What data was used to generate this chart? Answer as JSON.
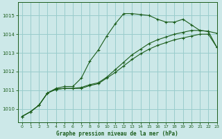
{
  "title": "Graphe pression niveau de la mer (hPa)",
  "bg_color": "#cce8e8",
  "grid_color": "#99cccc",
  "line_color": "#1a5c1a",
  "xlim": [
    -0.5,
    23
  ],
  "ylim": [
    1009.3,
    1015.7
  ],
  "xticks": [
    0,
    1,
    2,
    3,
    4,
    5,
    6,
    7,
    8,
    9,
    10,
    11,
    12,
    13,
    14,
    15,
    16,
    17,
    18,
    19,
    20,
    21,
    22,
    23
  ],
  "yticks": [
    1010,
    1011,
    1012,
    1013,
    1014,
    1015
  ],
  "series": [
    {
      "x": [
        0,
        1,
        2,
        3,
        4,
        5,
        6,
        7,
        8,
        9,
        10,
        11,
        12,
        13,
        14,
        15,
        16,
        17,
        18,
        19,
        20,
        21,
        22,
        23
      ],
      "y": [
        1009.6,
        1009.85,
        1010.2,
        1010.85,
        1011.1,
        1011.2,
        1011.2,
        1011.65,
        1012.55,
        1013.15,
        1013.9,
        1014.55,
        1015.1,
        1015.1,
        1015.05,
        1015.0,
        1014.8,
        1014.65,
        1014.65,
        1014.8,
        1014.5,
        1014.2,
        1014.15,
        1014.05
      ]
    },
    {
      "x": [
        0,
        1,
        2,
        3,
        4,
        5,
        6,
        7,
        8,
        9,
        10,
        11,
        12,
        13,
        14,
        15,
        16,
        17,
        18,
        19,
        20,
        21,
        22,
        23
      ],
      "y": [
        1009.6,
        1009.85,
        1010.2,
        1010.85,
        1011.05,
        1011.1,
        1011.1,
        1011.15,
        1011.3,
        1011.4,
        1011.7,
        1012.1,
        1012.5,
        1012.9,
        1013.2,
        1013.5,
        1013.7,
        1013.85,
        1014.0,
        1014.1,
        1014.2,
        1014.2,
        1014.15,
        1013.3
      ]
    },
    {
      "x": [
        0,
        1,
        2,
        3,
        4,
        5,
        6,
        7,
        8,
        9,
        10,
        11,
        12,
        13,
        14,
        15,
        16,
        17,
        18,
        19,
        20,
        21,
        22,
        23
      ],
      "y": [
        1009.6,
        1009.85,
        1010.2,
        1010.85,
        1011.05,
        1011.1,
        1011.1,
        1011.1,
        1011.25,
        1011.35,
        1011.65,
        1011.95,
        1012.3,
        1012.65,
        1012.95,
        1013.2,
        1013.4,
        1013.55,
        1013.7,
        1013.8,
        1013.9,
        1014.0,
        1014.0,
        1013.3
      ]
    }
  ]
}
